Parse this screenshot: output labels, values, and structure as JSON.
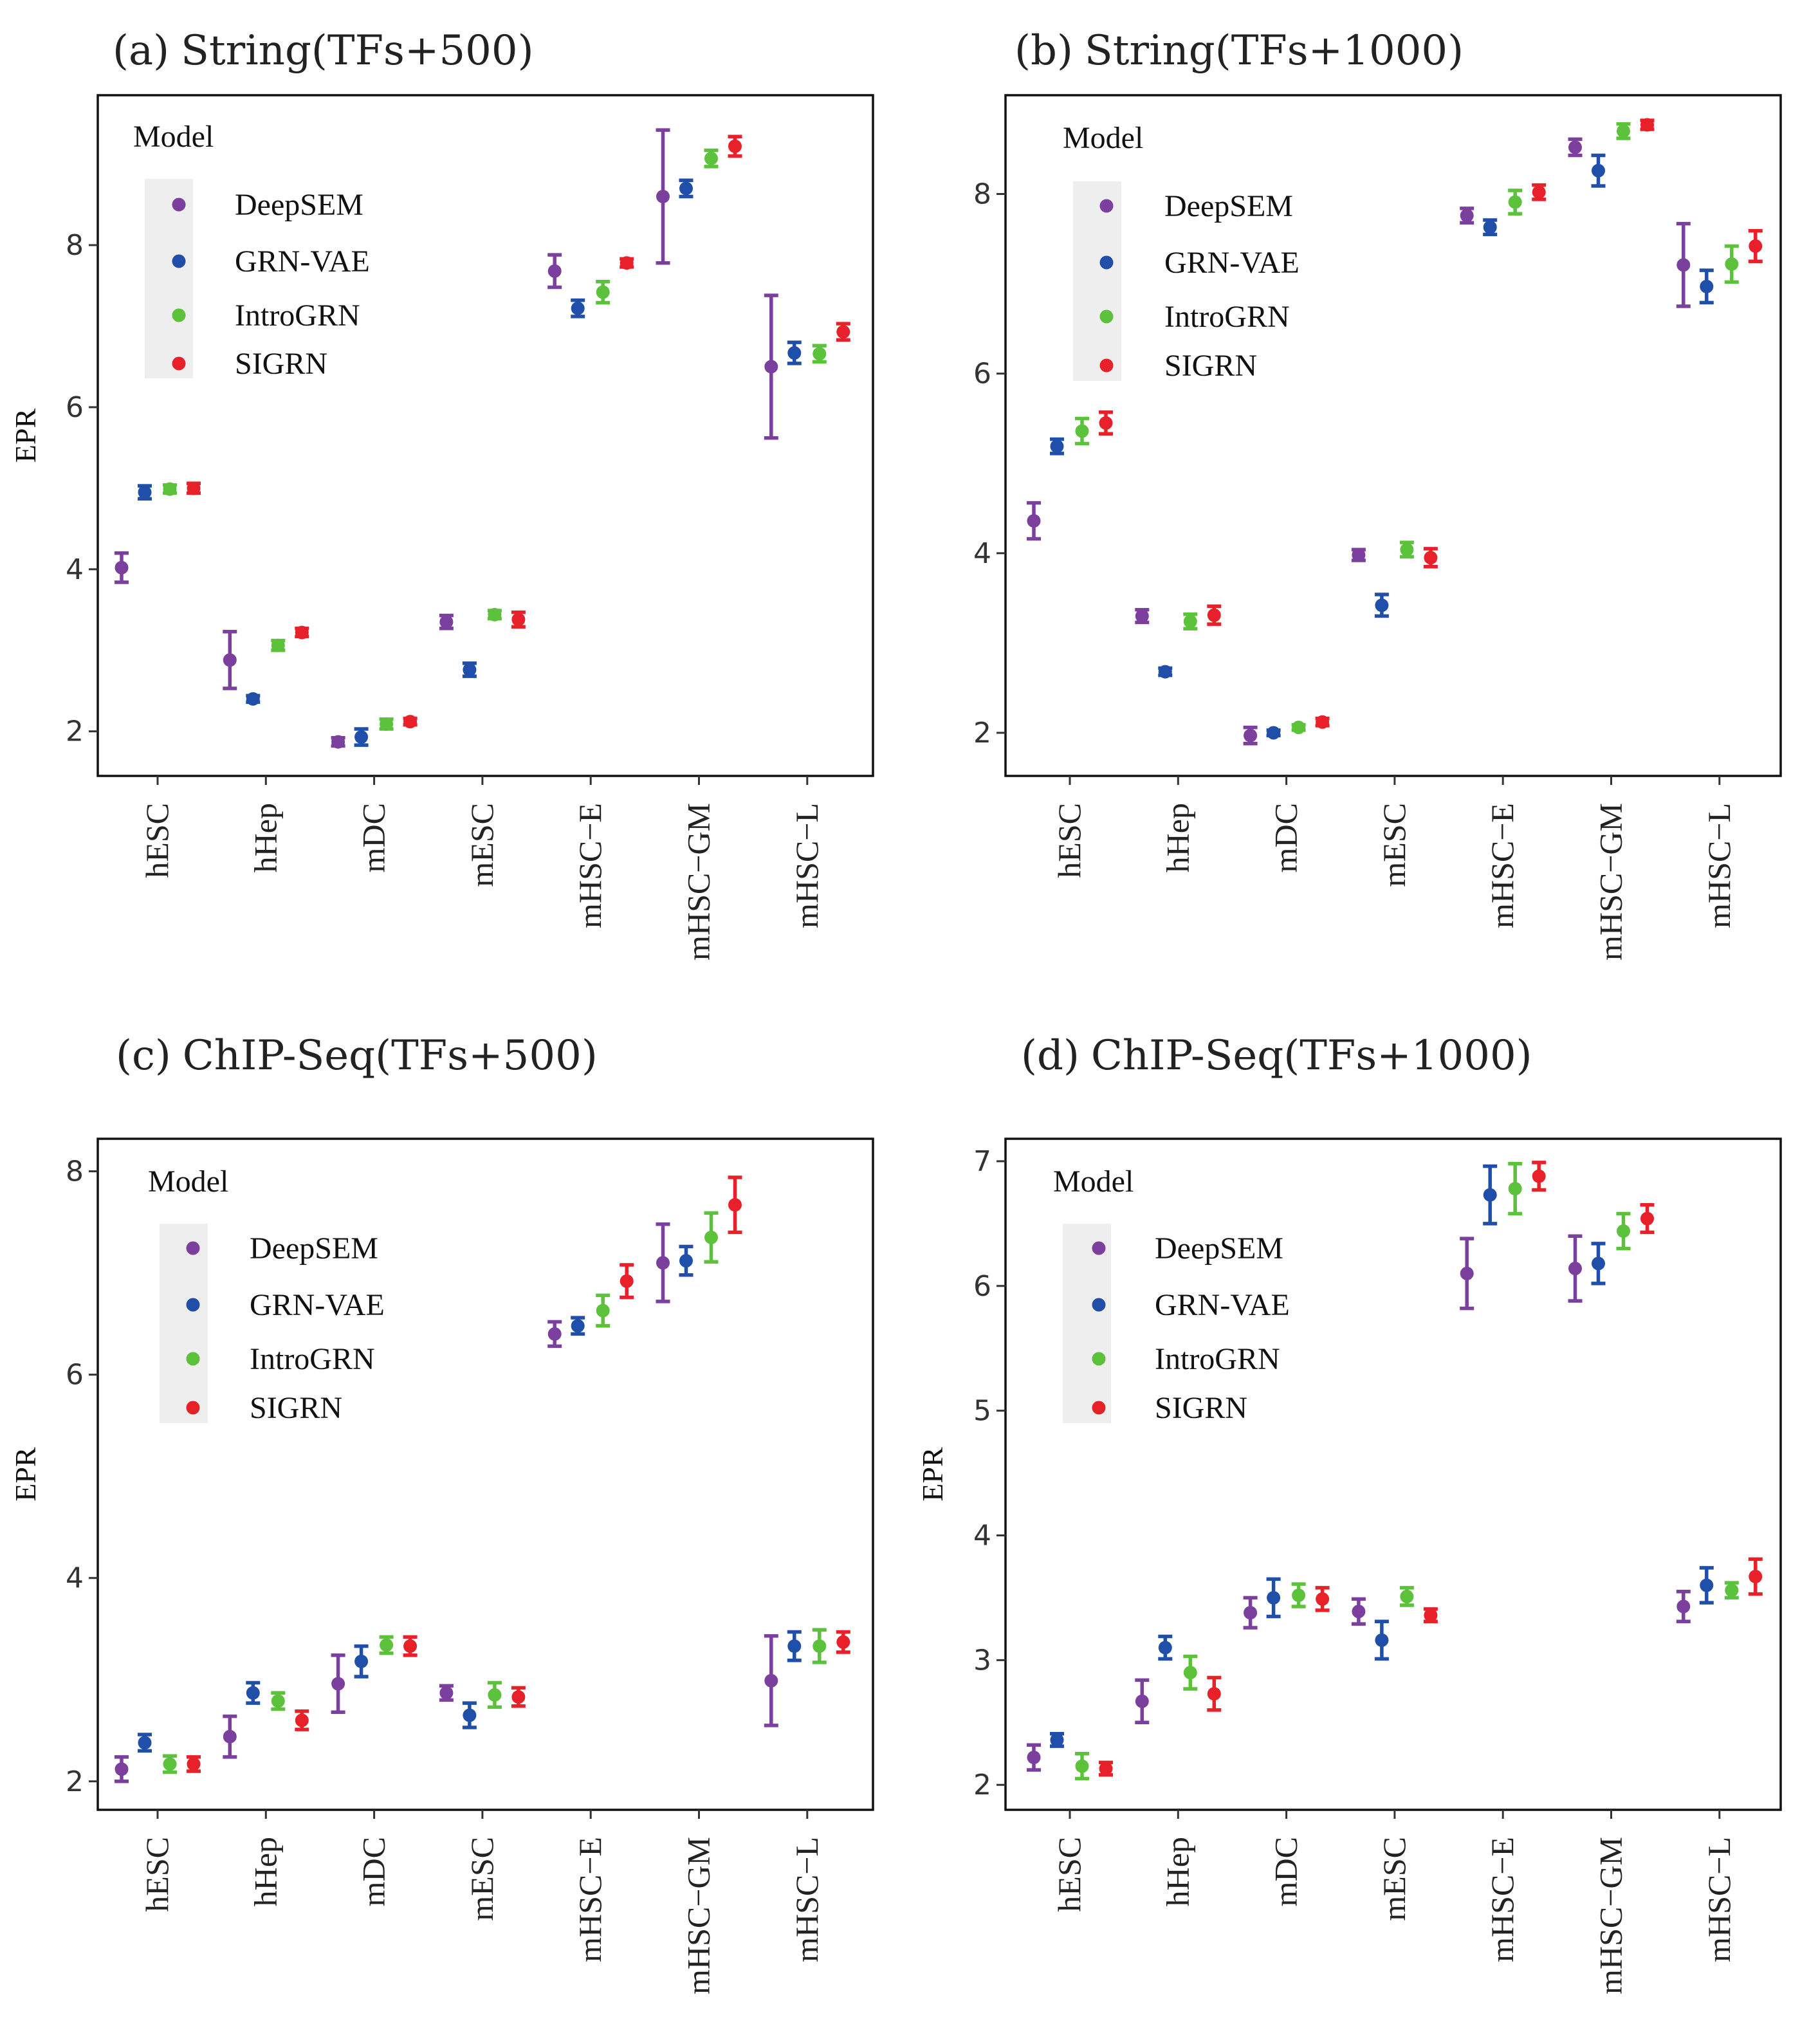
{
  "figure": {
    "legend_title": "Model",
    "y_label": "EPR",
    "models": [
      "DeepSEM",
      "GRN-VAE",
      "IntroGRN",
      "SIGRN"
    ],
    "colors": {
      "DeepSEM": "#7b3f9e",
      "GRN-VAE": "#1f4fa8",
      "IntroGRN": "#5cc13b",
      "SIGRN": "#e8202a"
    }
  },
  "chart_data": [
    {
      "type": "scatter",
      "panel": "(a)",
      "title": "String(TFs+500)",
      "xlabel": "",
      "ylabel": "EPR",
      "ylim": [
        1.45,
        9.85
      ],
      "yticks": [
        2,
        4,
        6,
        8
      ],
      "categories": [
        "hESC",
        "hHep",
        "mDC",
        "mESC",
        "mHSC−E",
        "mHSC−GM",
        "mHSC−L"
      ],
      "series": [
        {
          "name": "DeepSEM",
          "values": [
            4.02,
            2.88,
            1.87,
            3.35,
            7.68,
            8.6,
            6.5
          ],
          "errors": [
            0.18,
            0.35,
            0.05,
            0.08,
            0.2,
            0.82,
            0.88
          ]
        },
        {
          "name": "GRN-VAE",
          "values": [
            4.95,
            2.4,
            1.93,
            2.76,
            7.22,
            8.7,
            6.67
          ],
          "errors": [
            0.08,
            0.04,
            0.1,
            0.08,
            0.1,
            0.1,
            0.13
          ]
        },
        {
          "name": "IntroGRN",
          "values": [
            4.99,
            3.06,
            2.09,
            3.44,
            7.42,
            9.07,
            6.66
          ],
          "errors": [
            0.05,
            0.06,
            0.06,
            0.05,
            0.13,
            0.1,
            0.1
          ]
        },
        {
          "name": "SIGRN",
          "values": [
            5.0,
            3.22,
            2.12,
            3.38,
            7.78,
            9.22,
            6.93
          ],
          "errors": [
            0.06,
            0.05,
            0.04,
            0.09,
            0.05,
            0.12,
            0.1
          ]
        }
      ]
    },
    {
      "type": "scatter",
      "panel": "(b)",
      "title": "String(TFs+1000)",
      "xlabel": "",
      "ylabel": "",
      "ylim": [
        1.52,
        9.1
      ],
      "yticks": [
        2,
        4,
        6,
        8
      ],
      "categories": [
        "hESC",
        "hHep",
        "mDC",
        "mESC",
        "mHSC−E",
        "mHSC−GM",
        "mHSC−L"
      ],
      "series": [
        {
          "name": "DeepSEM",
          "values": [
            4.36,
            3.3,
            1.97,
            3.98,
            7.76,
            8.52,
            7.21
          ],
          "errors": [
            0.2,
            0.07,
            0.09,
            0.06,
            0.08,
            0.09,
            0.46
          ]
        },
        {
          "name": "GRN-VAE",
          "values": [
            5.19,
            2.68,
            2.0,
            3.42,
            7.63,
            8.26,
            6.97
          ],
          "errors": [
            0.08,
            0.04,
            0.03,
            0.12,
            0.08,
            0.17,
            0.18
          ]
        },
        {
          "name": "IntroGRN",
          "values": [
            5.36,
            3.24,
            2.06,
            4.04,
            7.91,
            8.7,
            7.22
          ],
          "errors": [
            0.14,
            0.08,
            0.03,
            0.08,
            0.13,
            0.08,
            0.2
          ]
        },
        {
          "name": "SIGRN",
          "values": [
            5.45,
            3.31,
            2.12,
            3.95,
            8.02,
            8.77,
            7.42
          ],
          "errors": [
            0.12,
            0.1,
            0.04,
            0.1,
            0.08,
            0.05,
            0.17
          ]
        }
      ]
    },
    {
      "type": "scatter",
      "panel": "(c)",
      "title": "ChIP-Seq(TFs+500)",
      "xlabel": "",
      "ylabel": "EPR",
      "ylim": [
        1.72,
        8.32
      ],
      "yticks": [
        2,
        4,
        6,
        8
      ],
      "categories": [
        "hESC",
        "hHep",
        "mDC",
        "mESC",
        "mHSC−E",
        "mHSC−GM",
        "mHSC−L"
      ],
      "series": [
        {
          "name": "DeepSEM",
          "values": [
            2.12,
            2.44,
            2.96,
            2.87,
            6.4,
            7.1,
            2.99
          ],
          "errors": [
            0.12,
            0.2,
            0.28,
            0.07,
            0.12,
            0.38,
            0.44
          ]
        },
        {
          "name": "GRN-VAE",
          "values": [
            2.38,
            2.87,
            3.18,
            2.65,
            6.48,
            7.12,
            3.33
          ],
          "errors": [
            0.08,
            0.1,
            0.15,
            0.12,
            0.08,
            0.14,
            0.14
          ]
        },
        {
          "name": "IntroGRN",
          "values": [
            2.17,
            2.79,
            3.34,
            2.85,
            6.63,
            7.35,
            3.33
          ],
          "errors": [
            0.08,
            0.08,
            0.08,
            0.12,
            0.15,
            0.24,
            0.16
          ]
        },
        {
          "name": "SIGRN",
          "values": [
            2.17,
            2.6,
            3.33,
            2.83,
            6.92,
            7.67,
            3.37
          ],
          "errors": [
            0.07,
            0.09,
            0.09,
            0.09,
            0.16,
            0.27,
            0.1
          ]
        }
      ]
    },
    {
      "type": "scatter",
      "panel": "(d)",
      "title": "ChIP-Seq(TFs+1000)",
      "xlabel": "",
      "ylabel": "EPR",
      "ylim": [
        1.8,
        7.18
      ],
      "yticks": [
        2,
        3,
        4,
        5,
        6,
        7
      ],
      "categories": [
        "hESC",
        "hHep",
        "mDC",
        "mESC",
        "mHSC−E",
        "mHSC−GM",
        "mHSC−L"
      ],
      "series": [
        {
          "name": "DeepSEM",
          "values": [
            2.22,
            2.67,
            3.38,
            3.39,
            6.1,
            6.14,
            3.43
          ],
          "errors": [
            0.1,
            0.17,
            0.12,
            0.1,
            0.28,
            0.26,
            0.12
          ]
        },
        {
          "name": "GRN-VAE",
          "values": [
            2.36,
            3.1,
            3.5,
            3.16,
            6.73,
            6.18,
            3.6
          ],
          "errors": [
            0.05,
            0.09,
            0.15,
            0.15,
            0.23,
            0.16,
            0.14
          ]
        },
        {
          "name": "IntroGRN",
          "values": [
            2.15,
            2.9,
            3.52,
            3.51,
            6.78,
            6.44,
            3.56
          ],
          "errors": [
            0.1,
            0.13,
            0.09,
            0.07,
            0.2,
            0.14,
            0.06
          ]
        },
        {
          "name": "SIGRN",
          "values": [
            2.13,
            2.73,
            3.49,
            3.36,
            6.88,
            6.54,
            3.67
          ],
          "errors": [
            0.05,
            0.13,
            0.09,
            0.05,
            0.11,
            0.11,
            0.14
          ]
        }
      ]
    }
  ]
}
